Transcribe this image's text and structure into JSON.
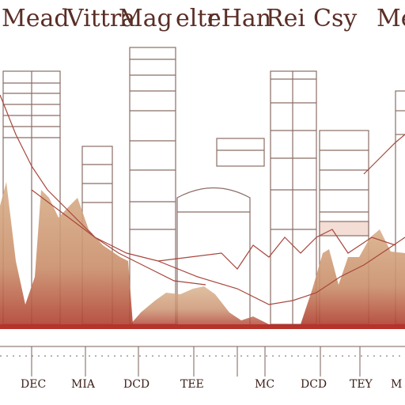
{
  "title": {
    "parts": [
      "Mead",
      "Vittra",
      "Mag",
      "eltr",
      "eHan",
      "Rei",
      "Csy",
      "Me"
    ]
  },
  "axis_labels": [
    "DEC",
    "MIA",
    "DCD",
    "TEE",
    "MC",
    "DCD",
    "TEY",
    "M"
  ]
}
